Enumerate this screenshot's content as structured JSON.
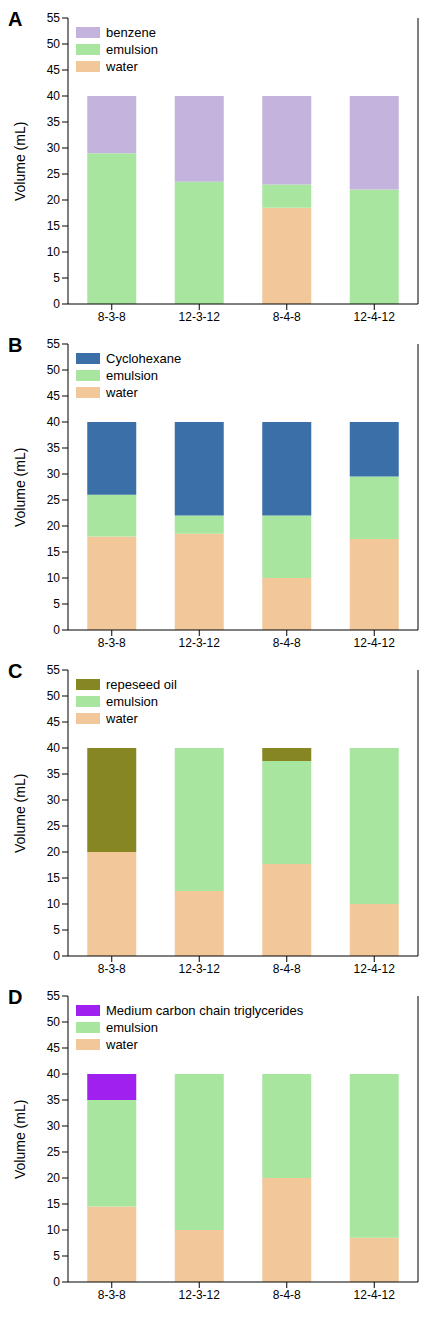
{
  "chart_data": [
    {
      "type": "bar",
      "title": "A",
      "stacked": true,
      "legend": "upper left",
      "y_label": "Volume (mL)",
      "categories": [
        "8-3-8",
        "12-3-12",
        "8-4-8",
        "12-4-12"
      ],
      "ylim": [
        0,
        55
      ],
      "yticks": [
        0,
        5,
        10,
        15,
        20,
        25,
        30,
        35,
        40,
        45,
        50,
        55
      ],
      "series": [
        {
          "name": "water",
          "color": "#f2c89b",
          "values": [
            0,
            0,
            18.5,
            0
          ]
        },
        {
          "name": "emulsion",
          "color": "#a8e6a0",
          "values": [
            29,
            23.5,
            4.5,
            22
          ]
        },
        {
          "name": "benzene",
          "color": "#c4b3dc",
          "values": [
            11,
            16.5,
            17,
            18
          ]
        }
      ]
    },
    {
      "type": "bar",
      "title": "B",
      "stacked": true,
      "legend": "upper left",
      "y_label": "Volume (mL)",
      "categories": [
        "8-3-8",
        "12-3-12",
        "8-4-8",
        "12-4-12"
      ],
      "ylim": [
        0,
        55
      ],
      "yticks": [
        0,
        5,
        10,
        15,
        20,
        25,
        30,
        35,
        40,
        45,
        50,
        55
      ],
      "series": [
        {
          "name": "water",
          "color": "#f2c89b",
          "values": [
            18,
            18.5,
            10,
            17.5
          ]
        },
        {
          "name": "emulsion",
          "color": "#a8e6a0",
          "values": [
            8,
            3.5,
            12,
            12
          ]
        },
        {
          "name": "Cyclohexane",
          "color": "#3b6fa8",
          "values": [
            14,
            18,
            18,
            10.5
          ]
        }
      ]
    },
    {
      "type": "bar",
      "title": "C",
      "stacked": true,
      "legend": "upper left",
      "y_label": "Volume (mL)",
      "categories": [
        "8-3-8",
        "12-3-12",
        "8-4-8",
        "12-4-12"
      ],
      "ylim": [
        0,
        55
      ],
      "yticks": [
        0,
        5,
        10,
        15,
        20,
        25,
        30,
        35,
        40,
        45,
        50,
        55
      ],
      "series": [
        {
          "name": "water",
          "color": "#f2c89b",
          "values": [
            20,
            12.5,
            17.7,
            10
          ]
        },
        {
          "name": "emulsion",
          "color": "#a8e6a0",
          "values": [
            0,
            27.5,
            19.8,
            30
          ]
        },
        {
          "name": "repeseed oil",
          "color": "#868622",
          "values": [
            20,
            0,
            2.5,
            0
          ]
        }
      ]
    },
    {
      "type": "bar",
      "title": "D",
      "stacked": true,
      "legend": "upper left",
      "y_label": "Volume (mL)",
      "categories": [
        "8-3-8",
        "12-3-12",
        "8-4-8",
        "12-4-12"
      ],
      "ylim": [
        0,
        55
      ],
      "yticks": [
        0,
        5,
        10,
        15,
        20,
        25,
        30,
        35,
        40,
        45,
        50,
        55
      ],
      "series": [
        {
          "name": "water",
          "color": "#f2c89b",
          "values": [
            14.5,
            10,
            20,
            8.5
          ]
        },
        {
          "name": "emulsion",
          "color": "#a8e6a0",
          "values": [
            20.5,
            30,
            20,
            31.5
          ]
        },
        {
          "name": "Medium carbon chain triglycerides",
          "color": "#a020f0",
          "values": [
            5,
            0,
            0,
            0
          ]
        }
      ]
    }
  ]
}
